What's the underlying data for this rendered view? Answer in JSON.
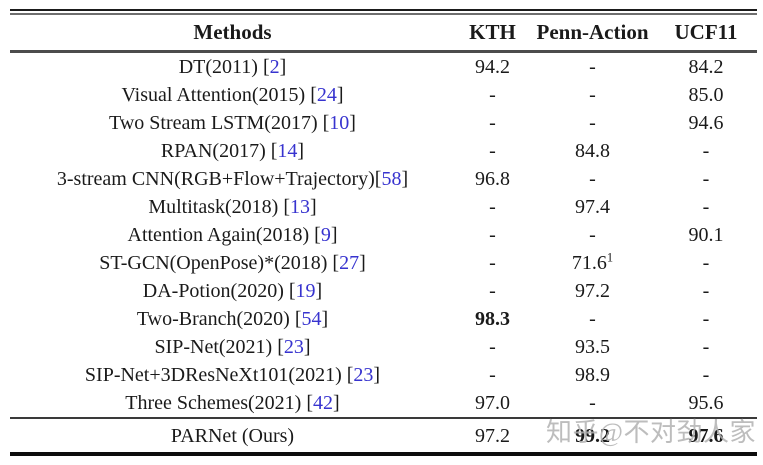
{
  "watermark": "知乎@不对劲人家",
  "colors": {
    "citation_blue": "#3733cf",
    "watermark_gray": "#b2b2b2"
  },
  "table": {
    "headers": {
      "method": "Methods",
      "kth": "KTH",
      "penn": "Penn-Action",
      "ucf": "UCF11"
    },
    "rows": [
      {
        "method": "DT(2011) ",
        "cite": "2",
        "kth": "94.2",
        "penn": "-",
        "ucf": "84.2"
      },
      {
        "method": "Visual Attention(2015) ",
        "cite": "24",
        "kth": "-",
        "penn": "-",
        "ucf": "85.0"
      },
      {
        "method": "Two Stream LSTM(2017) ",
        "cite": "10",
        "kth": "-",
        "penn": "-",
        "ucf": "94.6"
      },
      {
        "method": "RPAN(2017) ",
        "cite": "14",
        "kth": "-",
        "penn": "84.8",
        "ucf": "-"
      },
      {
        "method": "3-stream CNN(RGB+Flow+Trajectory)",
        "cite": "58",
        "kth": "96.8",
        "penn": "-",
        "ucf": "-"
      },
      {
        "method": "Multitask(2018) ",
        "cite": "13",
        "kth": "-",
        "penn": "97.4",
        "ucf": "-"
      },
      {
        "method": "Attention Again(2018) ",
        "cite": "9",
        "kth": "-",
        "penn": "-",
        "ucf": "90.1"
      },
      {
        "method": "ST-GCN(OpenPose)*(2018) ",
        "cite": "27",
        "kth": "-",
        "penn": "71.6",
        "penn_sup": "1",
        "ucf": "-"
      },
      {
        "method": "DA-Potion(2020) ",
        "cite": "19",
        "kth": "-",
        "penn": "97.2",
        "ucf": "-"
      },
      {
        "method": "Two-Branch(2020) ",
        "cite": "54",
        "kth": "98.3",
        "penn": "-",
        "ucf": "-"
      },
      {
        "method": "SIP-Net(2021) ",
        "cite": "23",
        "kth": "-",
        "penn": "93.5",
        "ucf": "-"
      },
      {
        "method": "SIP-Net+3DResNeXt101(2021) ",
        "cite": "23",
        "kth": "-",
        "penn": "98.9",
        "ucf": "-"
      },
      {
        "method": "Three Schemes(2021) ",
        "cite": "42",
        "kth": "97.0",
        "penn": "-",
        "ucf": "95.6"
      }
    ],
    "footer_row": {
      "method": "PARNet (Ours)",
      "kth": "97.2",
      "penn": "99.2",
      "ucf": "97.6"
    }
  }
}
